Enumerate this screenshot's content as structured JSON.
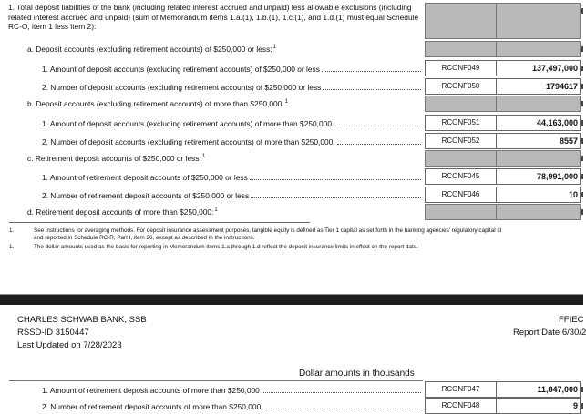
{
  "memo_items": [
    {
      "type": "heading",
      "text": "1. Total deposit liabilities of the bank (including related interest accrued and unpaid) less allowable exclusions (including related interest accrued and unpaid) (sum of Memorandum items 1.a.(1), 1.b.(1), 1.c.(1), and 1.d.(1) must equal Schedule RC-O, item 1 less item 2):"
    },
    {
      "type": "sub",
      "text": "a. Deposit accounts (excluding retirement accounts) of $250,000 or less:",
      "sup": "1"
    },
    {
      "type": "row",
      "text": "1. Amount of deposit accounts (excluding retirement accounts) of $250,000 or less",
      "code": "RCONF049",
      "value": "137,497,000"
    },
    {
      "type": "row",
      "text": "2. Number of deposit accounts (excluding retirement accounts) of $250,000 or less",
      "code": "RCONF050",
      "value": "1794617"
    },
    {
      "type": "sub",
      "text": "b. Deposit accounts (excluding retirement accounts) of more than $250,000:",
      "sup": "1"
    },
    {
      "type": "row",
      "text": "1. Amount of deposit accounts (excluding retirement accounts) of more than $250,000.",
      "code": "RCONF051",
      "value": "44,163,000"
    },
    {
      "type": "row",
      "text": "2. Number of deposit accounts (excluding retirement accounts) of more than $250,000.",
      "code": "RCONF052",
      "value": "8557"
    },
    {
      "type": "sub",
      "text": "c. Retirement deposit accounts of $250,000 or less:",
      "sup": "1"
    },
    {
      "type": "row",
      "text": "1. Amount of retirement deposit accounts of $250,000 or less",
      "code": "RCONF045",
      "value": "78,991,000"
    },
    {
      "type": "row",
      "text": "2. Number of retirement deposit accounts of $250,000 or less",
      "code": "RCONF046",
      "value": "10"
    },
    {
      "type": "sub",
      "text": "d. Retirement deposit accounts of more than $250,000:",
      "sup": "1"
    }
  ],
  "footnotes": [
    {
      "num": "1.",
      "line1": "See instructions for averaging methods. For deposit insurance assessment purposes, tangible equity is defined as Tier 1 capital as set forth in the banking agencies' regulatory capital st",
      "line2": "and reported in Schedule RC-R, Part I, item 26, except as described in the instructions."
    },
    {
      "num": "1.",
      "line1": "The dollar amounts used as the basis for reporting in Memorandum items 1.a through 1.d reflect the deposit insurance limits in effect on the report date."
    }
  ],
  "page_header": {
    "bank": "CHARLES SCHWAB BANK, SSB",
    "rssd": "RSSD-ID 3150447",
    "updated": "Last Updated on 7/28/2023",
    "form": "FFIEC",
    "report_date": "Report Date 6/30/2"
  },
  "units": "Dollar amounts in thousands",
  "page2_rows": [
    {
      "text": "1. Amount of retirement deposit accounts of more than $250,000",
      "code": "RCONF047",
      "value": "11,847,000"
    },
    {
      "text": "2. Number of retirement deposit accounts of more than $250,000",
      "code": "RCONF048",
      "value": "9"
    }
  ]
}
